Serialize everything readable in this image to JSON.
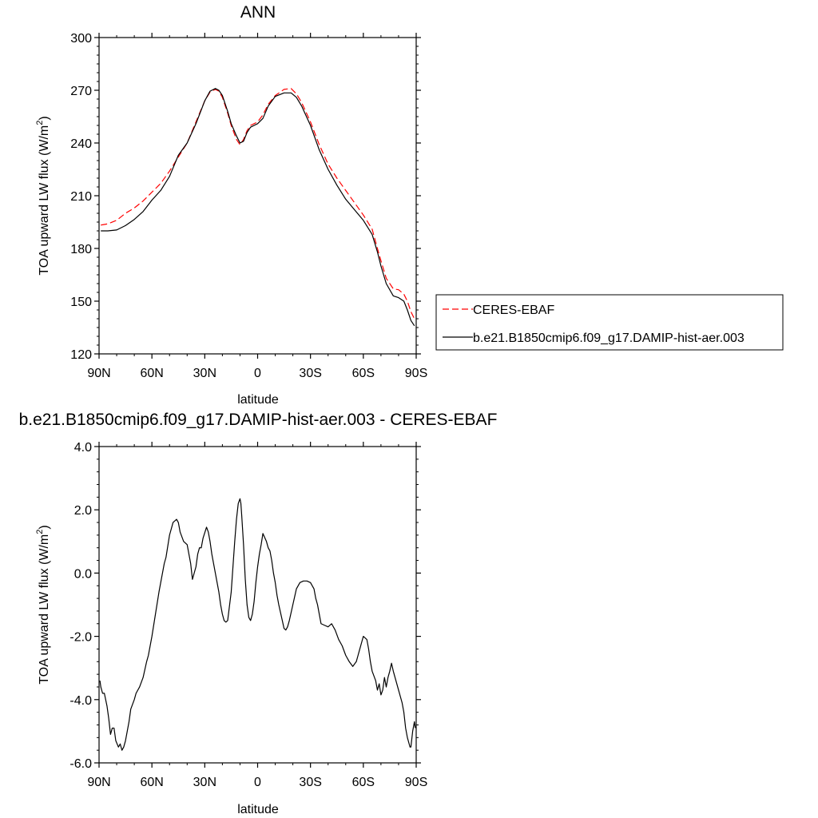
{
  "chart_data": [
    {
      "type": "line",
      "title": "ANN",
      "xlabel": "latitude",
      "ylabel": "TOA upward LW flux (W/m²)",
      "ylim": [
        120,
        300
      ],
      "xlim": [
        90,
        -90
      ],
      "yticks": [
        "120",
        "150",
        "180",
        "210",
        "240",
        "270",
        "300"
      ],
      "ytick_values": [
        120,
        150,
        180,
        210,
        240,
        270,
        300
      ],
      "xticks": [
        "90N",
        "60N",
        "30N",
        "0",
        "30S",
        "60S",
        "90S"
      ],
      "xtick_values": [
        90,
        60,
        30,
        0,
        -30,
        -60,
        -90
      ],
      "legend": {
        "placement": "right",
        "entries": [
          "CERES-EBAF",
          "b.e21.B1850cmip6.f09_g17.DAMIP-hist-aer.003"
        ]
      },
      "series": [
        {
          "name": "CERES-EBAF",
          "color": "#ff0000",
          "style": "dashed",
          "x": [
            89,
            85,
            80,
            75,
            70,
            65,
            60,
            55,
            50,
            45,
            40,
            35,
            30,
            27,
            24,
            22,
            20,
            17,
            15,
            12,
            10,
            8,
            6,
            4,
            2,
            0,
            -3,
            -6,
            -10,
            -15,
            -19,
            -22,
            -25,
            -30,
            -35,
            -40,
            -45,
            -50,
            -55,
            -60,
            -65,
            -68,
            -70,
            -73,
            -77,
            -80,
            -83,
            -85,
            -87,
            -89
          ],
          "y": [
            193.3,
            194,
            196,
            200,
            203,
            207,
            212,
            217,
            224,
            232,
            240,
            252,
            264,
            269,
            270.5,
            269.5,
            266,
            257,
            250,
            242,
            239,
            242,
            247,
            250,
            251,
            252,
            256,
            262,
            267,
            270.5,
            271,
            268,
            263,
            252,
            239,
            228,
            220,
            213,
            206,
            199,
            191,
            180,
            173,
            163,
            157,
            156.5,
            154,
            150,
            144,
            140
          ]
        },
        {
          "name": "b.e21.B1850cmip6.f09_g17.DAMIP-hist-aer.003",
          "color": "#000000",
          "style": "solid",
          "x": [
            89,
            85,
            80,
            75,
            70,
            65,
            60,
            55,
            50,
            45,
            40,
            35,
            30,
            27,
            24,
            22,
            20,
            17,
            15,
            12,
            10,
            8,
            6,
            4,
            2,
            0,
            -3,
            -6,
            -10,
            -15,
            -19,
            -22,
            -25,
            -30,
            -35,
            -40,
            -45,
            -50,
            -55,
            -60,
            -65,
            -68,
            -70,
            -73,
            -77,
            -80,
            -83,
            -85,
            -87,
            -89
          ],
          "y": [
            190,
            190,
            190.5,
            193,
            196.5,
            201,
            207.5,
            213,
            221,
            233,
            240,
            251,
            264,
            269.5,
            271,
            270,
            267,
            258,
            251,
            244,
            240,
            241,
            246,
            249,
            250,
            251,
            254,
            261,
            266.5,
            268.5,
            268.5,
            266,
            261,
            250,
            236,
            225,
            216,
            208,
            202,
            196,
            188,
            178,
            170,
            160,
            153,
            152,
            150,
            145,
            139,
            136
          ]
        }
      ]
    },
    {
      "type": "line",
      "title": "b.e21.B1850cmip6.f09_g17.DAMIP-hist-aer.003 - CERES-EBAF",
      "xlabel": "latitude",
      "ylabel": "TOA upward LW flux (W/m²)",
      "ylim": [
        -6.0,
        4.0
      ],
      "xlim": [
        90,
        -90
      ],
      "yticks": [
        "-6.0",
        "-4.0",
        "-2.0",
        "0.0",
        "2.0",
        "4.0"
      ],
      "ytick_values": [
        -6,
        -4,
        -2,
        0,
        2,
        4
      ],
      "xticks": [
        "90N",
        "60N",
        "30N",
        "0",
        "30S",
        "60S",
        "90S"
      ],
      "xtick_values": [
        90,
        60,
        30,
        0,
        -30,
        -60,
        -90
      ],
      "series": [
        {
          "color": "#000000",
          "style": "solid",
          "x": [
            89.5,
            89,
            88,
            87,
            85.5,
            84.5,
            83.5,
            82.5,
            81.5,
            80.5,
            79,
            78,
            77,
            76,
            75,
            74,
            73,
            72,
            70,
            69,
            67,
            65,
            63,
            62,
            60,
            58,
            56,
            54,
            53,
            52,
            50,
            48,
            46,
            45,
            44,
            42,
            40,
            38,
            37,
            36,
            35,
            34,
            33,
            32,
            31,
            29,
            28,
            27,
            26,
            24,
            22,
            21,
            20,
            19,
            18,
            17,
            15,
            14,
            13,
            12,
            11,
            10,
            9.5,
            9,
            8,
            7,
            6,
            5,
            4,
            3,
            2,
            1.5,
            1,
            0,
            -1,
            -2,
            -3,
            -5,
            -6,
            -7,
            -8,
            -9,
            -10,
            -11,
            -12,
            -14,
            -15,
            -16,
            -17,
            -18,
            -20,
            -22,
            -24,
            -26,
            -28,
            -30,
            -32,
            -33,
            -34,
            -35,
            -36,
            -38,
            -40,
            -42,
            -44,
            -46,
            -48,
            -50,
            -52,
            -54,
            -56,
            -57,
            -58,
            -59,
            -60,
            -62,
            -63,
            -64,
            -65,
            -67,
            -68,
            -69,
            -70,
            -71,
            -72,
            -73,
            -74,
            -75,
            -76,
            -77,
            -78,
            -80,
            -82,
            -83,
            -84,
            -85,
            -86,
            -86.5,
            -87,
            -88,
            -89,
            -89.5
          ],
          "y": [
            -3.4,
            -3.6,
            -3.8,
            -3.8,
            -4.2,
            -4.6,
            -5.1,
            -4.9,
            -4.9,
            -5.3,
            -5.5,
            -5.4,
            -5.6,
            -5.5,
            -5.3,
            -5.0,
            -4.7,
            -4.3,
            -4.0,
            -3.8,
            -3.6,
            -3.3,
            -2.8,
            -2.6,
            -2.0,
            -1.3,
            -0.6,
            0.0,
            0.3,
            0.5,
            1.2,
            1.6,
            1.7,
            1.6,
            1.3,
            1.0,
            0.9,
            0.3,
            -0.2,
            0.0,
            0.2,
            0.6,
            0.8,
            0.8,
            1.1,
            1.45,
            1.3,
            1.0,
            0.6,
            0.0,
            -0.6,
            -1.0,
            -1.3,
            -1.5,
            -1.55,
            -1.5,
            -0.6,
            0.2,
            1.0,
            1.7,
            2.2,
            2.35,
            2.2,
            1.8,
            0.9,
            -0.2,
            -1.0,
            -1.4,
            -1.5,
            -1.3,
            -0.9,
            -0.6,
            -0.3,
            0.2,
            0.6,
            0.9,
            1.25,
            1.0,
            0.8,
            0.7,
            0.4,
            0.0,
            -0.3,
            -0.7,
            -1.0,
            -1.5,
            -1.75,
            -1.8,
            -1.7,
            -1.5,
            -1.0,
            -0.5,
            -0.3,
            -0.25,
            -0.25,
            -0.3,
            -0.5,
            -0.8,
            -1.0,
            -1.3,
            -1.6,
            -1.65,
            -1.7,
            -1.6,
            -1.8,
            -2.1,
            -2.3,
            -2.6,
            -2.8,
            -2.95,
            -2.8,
            -2.6,
            -2.4,
            -2.2,
            -2.0,
            -2.1,
            -2.4,
            -2.8,
            -3.1,
            -3.4,
            -3.7,
            -3.5,
            -3.85,
            -3.7,
            -3.3,
            -3.6,
            -3.3,
            -3.1,
            -2.85,
            -3.1,
            -3.3,
            -3.7,
            -4.1,
            -4.4,
            -4.9,
            -5.2,
            -5.4,
            -5.5,
            -5.5,
            -5.0,
            -4.7,
            -4.9
          ]
        }
      ]
    }
  ]
}
